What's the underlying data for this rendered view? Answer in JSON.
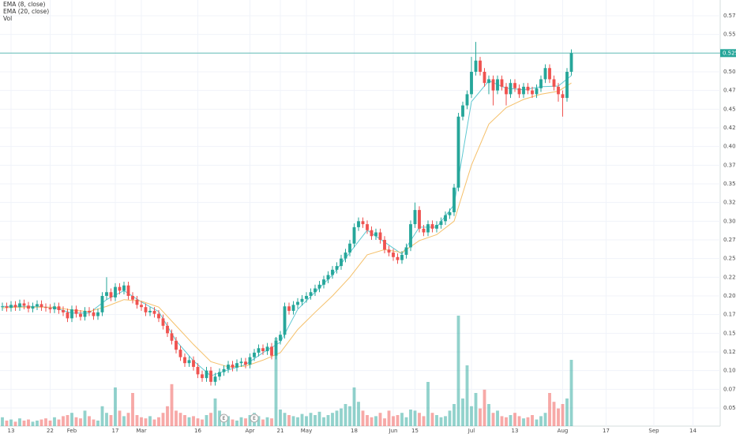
{
  "chart_data": {
    "type": "candlestick",
    "legend_extra": "Vol",
    "open": [
      0.185,
      0.186,
      0.184,
      0.188,
      0.185,
      0.19,
      0.187,
      0.183,
      0.186,
      0.189,
      0.185,
      0.184,
      0.182,
      0.186,
      0.181,
      0.178,
      0.17,
      0.182,
      0.176,
      0.172,
      0.18,
      0.178,
      0.173,
      0.178,
      0.2,
      0.205,
      0.198,
      0.212,
      0.207,
      0.214,
      0.2,
      0.195,
      0.188,
      0.185,
      0.178,
      0.18,
      0.176,
      0.17,
      0.16,
      0.15,
      0.14,
      0.128,
      0.118,
      0.11,
      0.114,
      0.105,
      0.095,
      0.09,
      0.1,
      0.085,
      0.092,
      0.098,
      0.102,
      0.108,
      0.104,
      0.11,
      0.112,
      0.108,
      0.118,
      0.124,
      0.13,
      0.126,
      0.132,
      0.12,
      0.14,
      0.148,
      0.186,
      0.18,
      0.188,
      0.192,
      0.196,
      0.2,
      0.205,
      0.21,
      0.215,
      0.222,
      0.228,
      0.235,
      0.24,
      0.25,
      0.258,
      0.27,
      0.292,
      0.3,
      0.296,
      0.288,
      0.28,
      0.285,
      0.275,
      0.262,
      0.258,
      0.252,
      0.248,
      0.255,
      0.265,
      0.296,
      0.315,
      0.29,
      0.285,
      0.296,
      0.29,
      0.295,
      0.3,
      0.308,
      0.312,
      0.345,
      0.44,
      0.455,
      0.47,
      0.5,
      0.515,
      0.5,
      0.485,
      0.49,
      0.475,
      0.49,
      0.48,
      0.47,
      0.485,
      0.478,
      0.47,
      0.48,
      0.475,
      0.47,
      0.478,
      0.49,
      0.505,
      0.49,
      0.48,
      0.47,
      0.465,
      0.5
    ],
    "high": [
      0.191,
      0.191,
      0.193,
      0.193,
      0.195,
      0.195,
      0.192,
      0.191,
      0.194,
      0.194,
      0.19,
      0.189,
      0.191,
      0.191,
      0.186,
      0.183,
      0.187,
      0.187,
      0.181,
      0.185,
      0.185,
      0.183,
      0.183,
      0.205,
      0.225,
      0.21,
      0.217,
      0.217,
      0.219,
      0.219,
      0.205,
      0.2,
      0.193,
      0.19,
      0.185,
      0.185,
      0.181,
      0.175,
      0.165,
      0.155,
      0.145,
      0.133,
      0.123,
      0.119,
      0.119,
      0.11,
      0.1,
      0.105,
      0.105,
      0.097,
      0.103,
      0.107,
      0.113,
      0.113,
      0.115,
      0.117,
      0.117,
      0.123,
      0.129,
      0.135,
      0.135,
      0.137,
      0.137,
      0.145,
      0.153,
      0.191,
      0.191,
      0.193,
      0.197,
      0.201,
      0.205,
      0.21,
      0.215,
      0.22,
      0.227,
      0.233,
      0.24,
      0.245,
      0.255,
      0.263,
      0.275,
      0.297,
      0.305,
      0.305,
      0.301,
      0.293,
      0.29,
      0.29,
      0.28,
      0.267,
      0.263,
      0.257,
      0.26,
      0.27,
      0.301,
      0.325,
      0.32,
      0.295,
      0.301,
      0.301,
      0.3,
      0.305,
      0.313,
      0.317,
      0.35,
      0.445,
      0.46,
      0.475,
      0.52,
      0.54,
      0.52,
      0.505,
      0.495,
      0.495,
      0.495,
      0.495,
      0.485,
      0.49,
      0.49,
      0.483,
      0.485,
      0.485,
      0.48,
      0.483,
      0.495,
      0.51,
      0.51,
      0.495,
      0.485,
      0.475,
      0.505,
      0.53
    ],
    "low": [
      0.18,
      0.179,
      0.179,
      0.18,
      0.18,
      0.182,
      0.178,
      0.178,
      0.181,
      0.18,
      0.179,
      0.177,
      0.177,
      0.176,
      0.173,
      0.165,
      0.165,
      0.171,
      0.167,
      0.167,
      0.173,
      0.168,
      0.168,
      0.173,
      0.195,
      0.193,
      0.193,
      0.202,
      0.202,
      0.195,
      0.19,
      0.183,
      0.18,
      0.173,
      0.173,
      0.171,
      0.165,
      0.155,
      0.145,
      0.135,
      0.123,
      0.113,
      0.105,
      0.105,
      0.1,
      0.09,
      0.085,
      0.085,
      0.08,
      0.08,
      0.087,
      0.093,
      0.097,
      0.099,
      0.099,
      0.105,
      0.103,
      0.103,
      0.113,
      0.119,
      0.121,
      0.121,
      0.115,
      0.115,
      0.135,
      0.143,
      0.175,
      0.175,
      0.183,
      0.187,
      0.191,
      0.195,
      0.2,
      0.205,
      0.21,
      0.217,
      0.223,
      0.23,
      0.235,
      0.245,
      0.253,
      0.265,
      0.287,
      0.291,
      0.283,
      0.275,
      0.275,
      0.27,
      0.257,
      0.253,
      0.247,
      0.243,
      0.243,
      0.25,
      0.26,
      0.291,
      0.285,
      0.28,
      0.28,
      0.285,
      0.285,
      0.29,
      0.295,
      0.303,
      0.307,
      0.34,
      0.435,
      0.45,
      0.465,
      0.495,
      0.495,
      0.48,
      0.47,
      0.455,
      0.47,
      0.475,
      0.455,
      0.465,
      0.473,
      0.465,
      0.465,
      0.47,
      0.465,
      0.465,
      0.473,
      0.485,
      0.485,
      0.475,
      0.46,
      0.44,
      0.46,
      0.495
    ],
    "close": [
      0.186,
      0.184,
      0.188,
      0.185,
      0.19,
      0.187,
      0.183,
      0.186,
      0.189,
      0.185,
      0.184,
      0.182,
      0.186,
      0.181,
      0.178,
      0.17,
      0.182,
      0.176,
      0.172,
      0.18,
      0.178,
      0.173,
      0.178,
      0.2,
      0.205,
      0.198,
      0.212,
      0.207,
      0.214,
      0.2,
      0.195,
      0.188,
      0.185,
      0.178,
      0.18,
      0.176,
      0.17,
      0.16,
      0.15,
      0.14,
      0.128,
      0.118,
      0.11,
      0.114,
      0.105,
      0.095,
      0.09,
      0.1,
      0.085,
      0.092,
      0.098,
      0.102,
      0.108,
      0.104,
      0.11,
      0.112,
      0.108,
      0.118,
      0.124,
      0.13,
      0.126,
      0.132,
      0.12,
      0.14,
      0.148,
      0.186,
      0.18,
      0.188,
      0.192,
      0.196,
      0.2,
      0.205,
      0.21,
      0.215,
      0.222,
      0.228,
      0.235,
      0.24,
      0.25,
      0.258,
      0.27,
      0.292,
      0.3,
      0.296,
      0.288,
      0.28,
      0.285,
      0.275,
      0.262,
      0.258,
      0.252,
      0.248,
      0.255,
      0.265,
      0.296,
      0.315,
      0.29,
      0.285,
      0.296,
      0.29,
      0.295,
      0.3,
      0.308,
      0.312,
      0.345,
      0.44,
      0.455,
      0.47,
      0.5,
      0.515,
      0.5,
      0.485,
      0.49,
      0.475,
      0.49,
      0.48,
      0.47,
      0.485,
      0.478,
      0.47,
      0.48,
      0.475,
      0.47,
      0.478,
      0.49,
      0.505,
      0.49,
      0.48,
      0.47,
      0.465,
      0.5,
      0.525
    ],
    "volume": [
      8,
      5,
      6,
      4,
      7,
      5,
      6,
      4,
      5,
      6,
      7,
      5,
      8,
      6,
      9,
      10,
      12,
      8,
      7,
      14,
      9,
      6,
      5,
      18,
      12,
      10,
      35,
      14,
      9,
      12,
      30,
      10,
      8,
      7,
      9,
      6,
      8,
      12,
      18,
      38,
      14,
      12,
      10,
      8,
      9,
      7,
      6,
      10,
      12,
      25,
      14,
      8,
      9,
      6,
      5,
      8,
      7,
      10,
      12,
      9,
      6,
      8,
      7,
      80,
      15,
      12,
      10,
      9,
      8,
      11,
      9,
      12,
      10,
      13,
      8,
      10,
      12,
      14,
      16,
      20,
      18,
      35,
      22,
      14,
      10,
      8,
      9,
      12,
      7,
      14,
      9,
      10,
      12,
      8,
      15,
      14,
      12,
      9,
      40,
      12,
      10,
      8,
      9,
      14,
      20,
      100,
      25,
      55,
      18,
      30,
      16,
      33,
      20,
      12,
      14,
      9,
      8,
      10,
      12,
      9,
      7,
      8,
      10,
      6,
      9,
      12,
      30,
      22,
      16,
      20,
      25,
      60
    ],
    "up_color": "#26a69a",
    "down_color": "#ef5350",
    "series": [
      {
        "name": "EMA (8, close)",
        "color": "#5ec8d1",
        "x": [
          0,
          4,
          8,
          12,
          16,
          20,
          24,
          28,
          32,
          36,
          40,
          44,
          48,
          52,
          56,
          60,
          64,
          68,
          72,
          76,
          80,
          84,
          88,
          92,
          96,
          100,
          104,
          108,
          112,
          116,
          120,
          124,
          128,
          131
        ],
        "values": [
          0.186,
          0.186,
          0.186,
          0.184,
          0.177,
          0.177,
          0.195,
          0.207,
          0.192,
          0.179,
          0.14,
          0.113,
          0.093,
          0.101,
          0.108,
          0.124,
          0.138,
          0.182,
          0.205,
          0.228,
          0.258,
          0.288,
          0.272,
          0.256,
          0.292,
          0.292,
          0.322,
          0.46,
          0.488,
          0.478,
          0.476,
          0.48,
          0.481,
          0.495
        ]
      },
      {
        "name": "EMA (20, close)",
        "color": "#f5c06a",
        "x": [
          0,
          4,
          8,
          12,
          16,
          20,
          24,
          28,
          32,
          36,
          40,
          44,
          48,
          52,
          56,
          60,
          64,
          68,
          72,
          76,
          80,
          84,
          88,
          92,
          96,
          100,
          104,
          108,
          112,
          116,
          120,
          124,
          128,
          131
        ],
        "values": [
          0.184,
          0.185,
          0.185,
          0.185,
          0.181,
          0.179,
          0.186,
          0.195,
          0.193,
          0.185,
          0.16,
          0.135,
          0.112,
          0.105,
          0.106,
          0.114,
          0.124,
          0.155,
          0.178,
          0.2,
          0.225,
          0.255,
          0.262,
          0.258,
          0.274,
          0.282,
          0.3,
          0.375,
          0.43,
          0.452,
          0.463,
          0.47,
          0.474,
          0.485
        ]
      }
    ],
    "ylim": [
      0.0257,
      0.5961
    ],
    "yticks": [
      {
        "value": 0.05,
        "label": "0.050"
      },
      {
        "value": 0.075,
        "label": "0.075"
      },
      {
        "value": 0.1,
        "label": "0.100"
      },
      {
        "value": 0.125,
        "label": "0.125"
      },
      {
        "value": 0.15,
        "label": "0.150"
      },
      {
        "value": 0.175,
        "label": "0.175"
      },
      {
        "value": 0.2,
        "label": "0.200"
      },
      {
        "value": 0.225,
        "label": "0.225"
      },
      {
        "value": 0.25,
        "label": "0.250"
      },
      {
        "value": 0.275,
        "label": "0.275"
      },
      {
        "value": 0.3,
        "label": "0.300"
      },
      {
        "value": 0.325,
        "label": "0.325"
      },
      {
        "value": 0.35,
        "label": "0.350"
      },
      {
        "value": 0.375,
        "label": "0.375"
      },
      {
        "value": 0.4,
        "label": "0.400"
      },
      {
        "value": 0.425,
        "label": "0.425"
      },
      {
        "value": 0.45,
        "label": "0.450"
      },
      {
        "value": 0.475,
        "label": "0.475"
      },
      {
        "value": 0.5,
        "label": "0.500"
      },
      {
        "value": 0.525,
        "label": "0.525"
      },
      {
        "value": 0.55,
        "label": "0.550"
      },
      {
        "value": 0.575,
        "label": "0.575"
      }
    ],
    "xlim": [
      -0.545,
      165.27
    ],
    "xticks": [
      {
        "value": 2,
        "label": "13"
      },
      {
        "value": 11,
        "label": "22"
      },
      {
        "value": 16,
        "label": "Feb"
      },
      {
        "value": 26,
        "label": "17"
      },
      {
        "value": 32,
        "label": "Mar"
      },
      {
        "value": 45,
        "label": "16"
      },
      {
        "value": 57,
        "label": "Apr"
      },
      {
        "value": 64,
        "label": "21"
      },
      {
        "value": 70,
        "label": "May"
      },
      {
        "value": 81,
        "label": "18"
      },
      {
        "value": 90,
        "label": "Jun"
      },
      {
        "value": 95,
        "label": "15"
      },
      {
        "value": 108,
        "label": "Jul"
      },
      {
        "value": 118,
        "label": "13"
      },
      {
        "value": 129,
        "label": "Aug"
      },
      {
        "value": 139,
        "label": "17"
      },
      {
        "value": 150,
        "label": "Sep"
      },
      {
        "value": 159,
        "label": "14"
      }
    ],
    "vlim": [
      0,
      100
    ],
    "last_price": {
      "value": 0.525,
      "label": "0.525"
    },
    "events": [
      {
        "x": 51,
        "label": "E"
      },
      {
        "x": 58,
        "label": "E"
      }
    ],
    "grid": true
  }
}
